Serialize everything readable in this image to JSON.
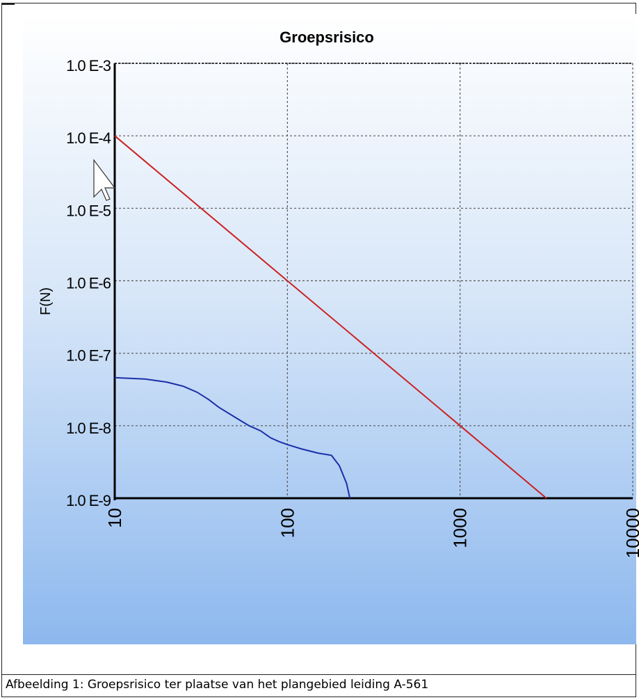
{
  "caption": "Afbeelding 1: Groepsrisico ter plaatse van het plangebied leiding A-561",
  "chart_data": {
    "type": "line",
    "title": "Groepsrisico",
    "xlabel": "",
    "ylabel": "F(N)",
    "x_scale": "log",
    "y_scale": "log",
    "xlim": [
      10,
      10000
    ],
    "ylim": [
      1e-09,
      0.001
    ],
    "x_ticks": [
      "10",
      "100",
      "1000",
      "10000"
    ],
    "y_ticks": [
      "1.0 E-3",
      "1.0 E-4",
      "1.0 E-5",
      "1.0 E-6",
      "1.0 E-7",
      "1.0 E-8",
      "1.0 E-9"
    ],
    "grid": true,
    "series": [
      {
        "color": "#cc2020",
        "x": [
          10,
          100,
          1000,
          3162
        ],
        "y": [
          0.0001,
          1e-06,
          1e-08,
          1e-09
        ]
      },
      {
        "color": "#1a2fa8",
        "x": [
          10,
          15,
          20,
          25,
          30,
          35,
          40,
          50,
          60,
          70,
          80,
          90,
          100,
          120,
          150,
          180,
          200,
          220,
          230
        ],
        "y": [
          4.6e-08,
          4.4e-08,
          4e-08,
          3.5e-08,
          2.9e-08,
          2.3e-08,
          1.8e-08,
          1.3e-08,
          1e-08,
          8.5e-09,
          6.8e-09,
          6e-09,
          5.5e-09,
          4.8e-09,
          4.2e-09,
          3.9e-09,
          2.8e-09,
          1.6e-09,
          1e-09
        ]
      }
    ]
  }
}
